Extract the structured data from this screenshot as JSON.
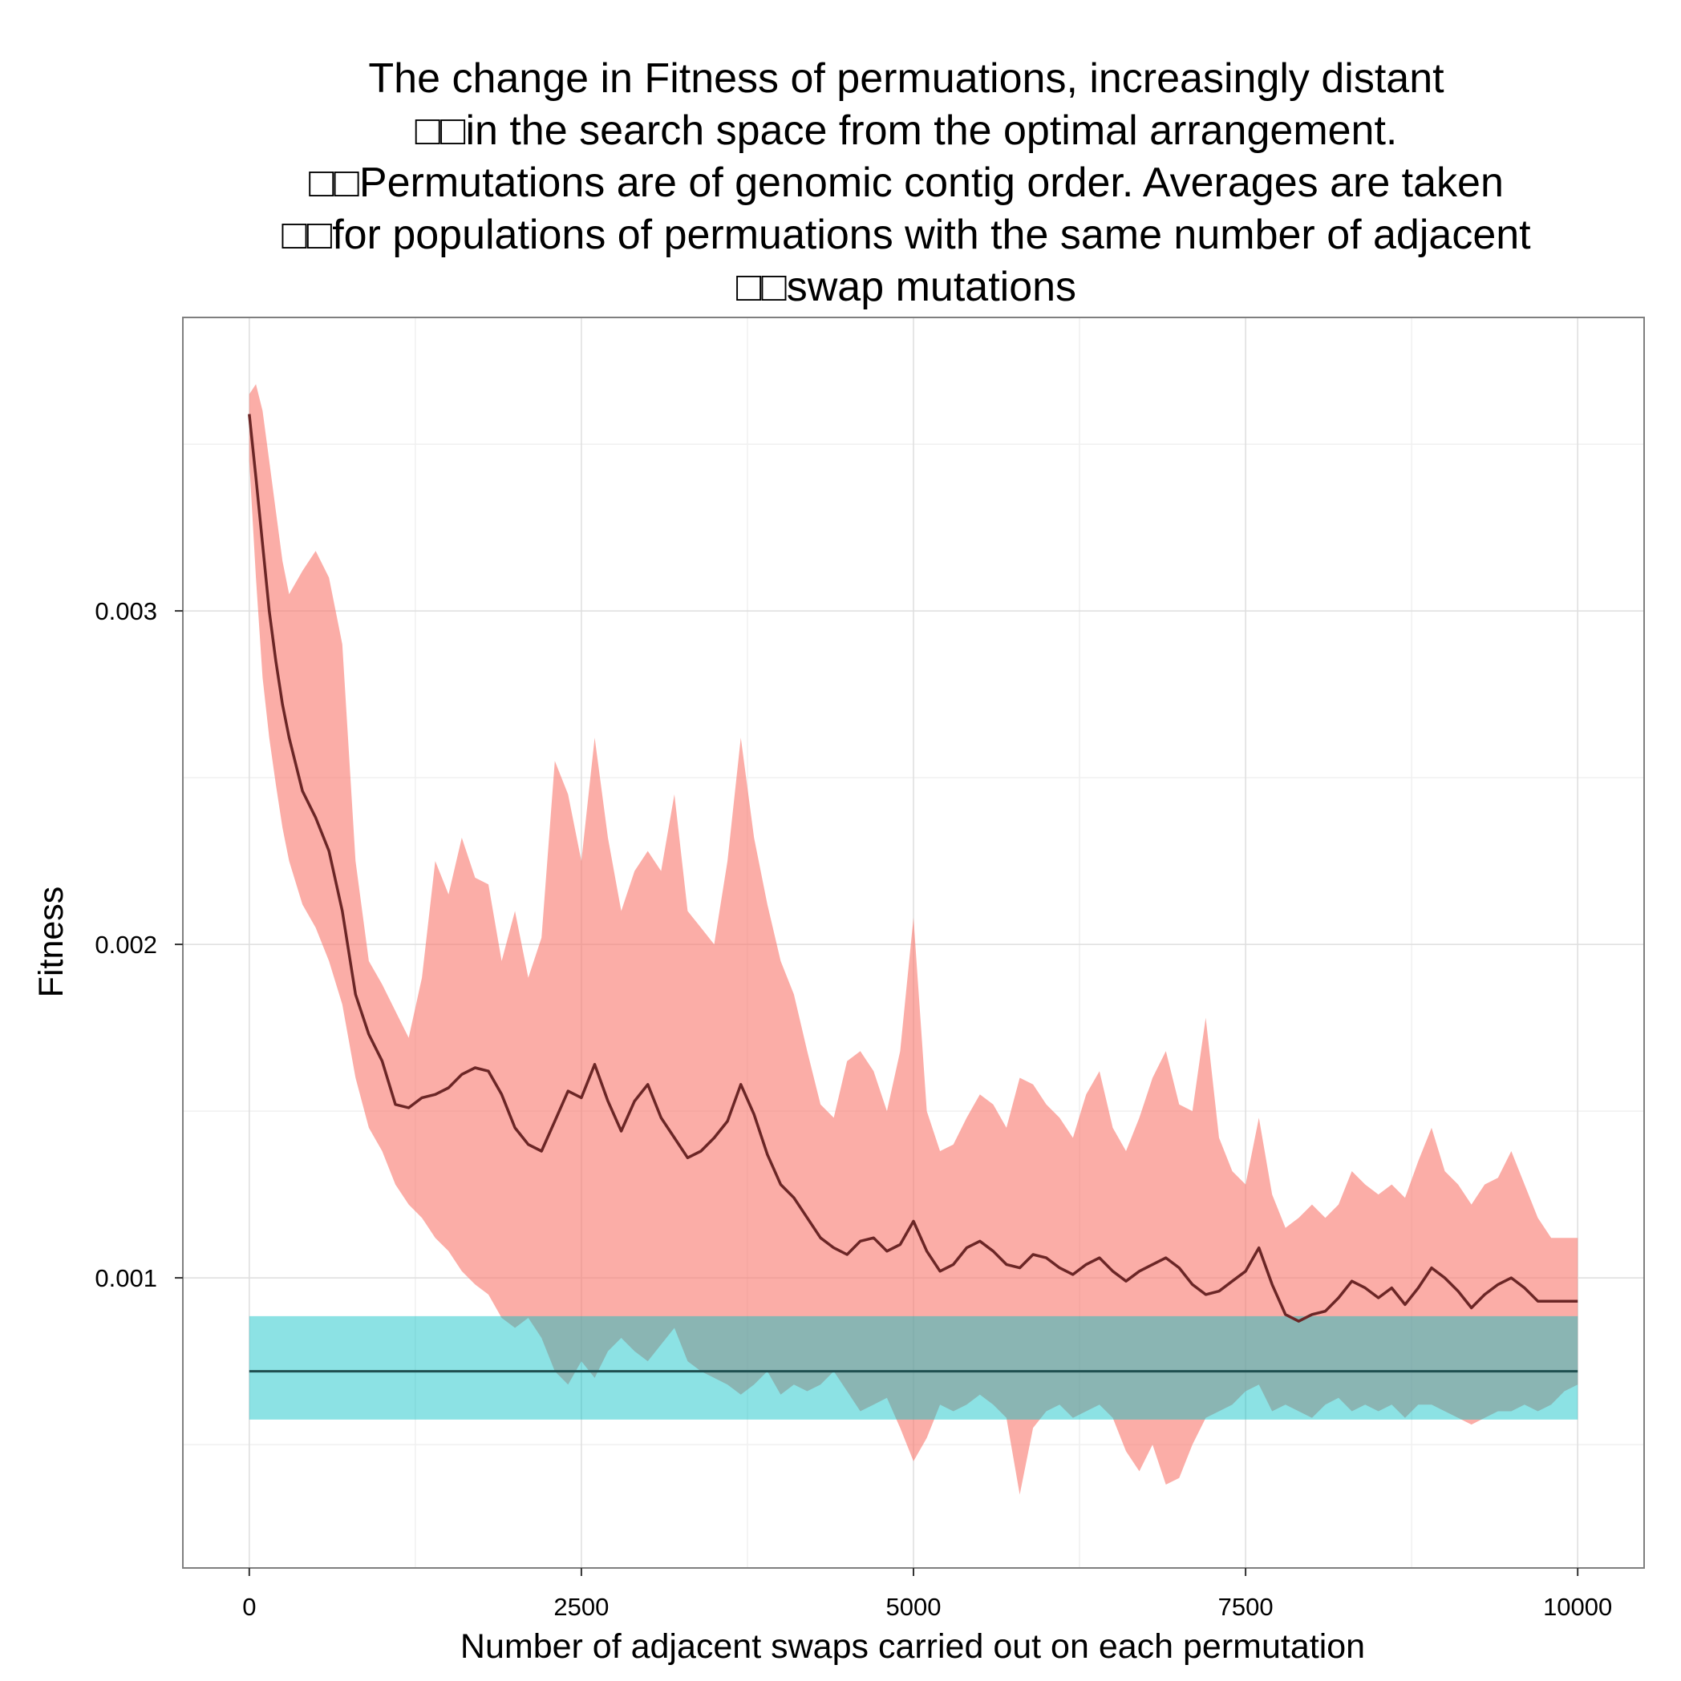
{
  "chart_data": {
    "type": "area",
    "title_lines": [
      "The change in Fitness of permuations, increasingly distant",
      "□□in the search space from the optimal arrangement.",
      "□□Permutations are of genomic contig order. Averages are taken",
      "□□for populations of permuations with the same number of adjacent",
      "□□swap mutations"
    ],
    "xlabel": "Number of adjacent swaps carried out on each permutation",
    "ylabel": "Fitness",
    "xlim": [
      -500,
      10500
    ],
    "ylim": [
      0.00013,
      0.00388
    ],
    "x_ticks": [
      0,
      2500,
      5000,
      7500,
      10000
    ],
    "x_tick_labels": [
      "0",
      "2500",
      "5000",
      "7500",
      "10000"
    ],
    "y_ticks": [
      0.001,
      0.002,
      0.003
    ],
    "y_tick_labels": [
      "0.001",
      "0.002",
      "0.003"
    ],
    "grid": true,
    "colors": {
      "panel_border": "#7f7f7f",
      "grid_major": "#dedede",
      "grid_minor": "#f0f0f0",
      "ribbon_permuted": "#f8766d",
      "line_permuted": "#6b2626",
      "ribbon_optimal": "#00bfc4",
      "line_optimal": "#1f4f50"
    },
    "series": [
      {
        "x": [
          0,
          50,
          100,
          150,
          200,
          250,
          300,
          400,
          500,
          600,
          700,
          800,
          900,
          1000,
          1100,
          1200,
          1300,
          1400,
          1500,
          1600,
          1700,
          1800,
          1900,
          2000,
          2100,
          2200,
          2300,
          2400,
          2500,
          2600,
          2700,
          2800,
          2900,
          3000,
          3100,
          3200,
          3300,
          3400,
          3500,
          3600,
          3700,
          3800,
          3900,
          4000,
          4100,
          4200,
          4300,
          4400,
          4500,
          4600,
          4700,
          4800,
          4900,
          5000,
          5100,
          5200,
          5300,
          5400,
          5500,
          5600,
          5700,
          5800,
          5900,
          6000,
          6100,
          6200,
          6300,
          6400,
          6500,
          6600,
          6700,
          6800,
          6900,
          7000,
          7100,
          7200,
          7300,
          7400,
          7500,
          7600,
          7700,
          7800,
          7900,
          8000,
          8100,
          8200,
          8300,
          8400,
          8500,
          8600,
          8700,
          8800,
          8900,
          9000,
          9100,
          9200,
          9300,
          9400,
          9500,
          9600,
          9700,
          9800,
          9900,
          10000
        ],
        "mean": [
          0.00359,
          0.0034,
          0.0032,
          0.003,
          0.00285,
          0.00272,
          0.00262,
          0.00246,
          0.00238,
          0.00228,
          0.0021,
          0.00185,
          0.00173,
          0.00165,
          0.00152,
          0.00151,
          0.00154,
          0.00155,
          0.00157,
          0.00161,
          0.00163,
          0.00162,
          0.00155,
          0.00145,
          0.0014,
          0.00138,
          0.00147,
          0.00156,
          0.00154,
          0.00164,
          0.00153,
          0.00144,
          0.00153,
          0.00158,
          0.00148,
          0.00142,
          0.00136,
          0.00138,
          0.00142,
          0.00147,
          0.00158,
          0.00149,
          0.00137,
          0.00128,
          0.00124,
          0.00118,
          0.00112,
          0.00109,
          0.00107,
          0.00111,
          0.00112,
          0.00108,
          0.0011,
          0.00117,
          0.00108,
          0.00102,
          0.00104,
          0.00109,
          0.00111,
          0.00108,
          0.00104,
          0.00103,
          0.00107,
          0.00106,
          0.00103,
          0.00101,
          0.00104,
          0.00106,
          0.00102,
          0.00099,
          0.00102,
          0.00104,
          0.00106,
          0.00103,
          0.00098,
          0.00095,
          0.00096,
          0.00099,
          0.00102,
          0.00109,
          0.00098,
          0.00089,
          0.00087,
          0.00089,
          0.0009,
          0.00094,
          0.00099,
          0.00097,
          0.00094,
          0.00097,
          0.00092,
          0.00097,
          0.00103,
          0.001,
          0.00096,
          0.00091,
          0.00095,
          0.00098,
          0.001,
          0.00097,
          0.00093,
          0.00093,
          0.00093,
          0.00093
        ],
        "upper": [
          0.00365,
          0.00368,
          0.0036,
          0.00345,
          0.0033,
          0.00315,
          0.00305,
          0.00312,
          0.00318,
          0.0031,
          0.0029,
          0.00225,
          0.00195,
          0.00188,
          0.0018,
          0.00172,
          0.0019,
          0.00225,
          0.00215,
          0.00232,
          0.0022,
          0.00218,
          0.00195,
          0.0021,
          0.0019,
          0.00202,
          0.00255,
          0.00245,
          0.00225,
          0.00262,
          0.00232,
          0.0021,
          0.00222,
          0.00228,
          0.00222,
          0.00245,
          0.0021,
          0.00205,
          0.002,
          0.00225,
          0.00262,
          0.00232,
          0.00212,
          0.00195,
          0.00185,
          0.00168,
          0.00152,
          0.00148,
          0.00165,
          0.00168,
          0.00162,
          0.0015,
          0.00168,
          0.00208,
          0.0015,
          0.00138,
          0.0014,
          0.00148,
          0.00155,
          0.00152,
          0.00145,
          0.0016,
          0.00158,
          0.00152,
          0.00148,
          0.00142,
          0.00155,
          0.00162,
          0.00145,
          0.00138,
          0.00148,
          0.0016,
          0.00168,
          0.00152,
          0.0015,
          0.00178,
          0.00142,
          0.00132,
          0.00128,
          0.00148,
          0.00125,
          0.00115,
          0.00118,
          0.00122,
          0.00118,
          0.00122,
          0.00132,
          0.00128,
          0.00125,
          0.00128,
          0.00124,
          0.00135,
          0.00145,
          0.00132,
          0.00128,
          0.00122,
          0.00128,
          0.0013,
          0.00138,
          0.00128,
          0.00118,
          0.00112,
          0.00112,
          0.00112
        ],
        "lower": [
          0.00345,
          0.0031,
          0.0028,
          0.00262,
          0.00248,
          0.00235,
          0.00225,
          0.00212,
          0.00205,
          0.00195,
          0.00182,
          0.0016,
          0.00145,
          0.00138,
          0.00128,
          0.00122,
          0.00118,
          0.00112,
          0.00108,
          0.00102,
          0.00098,
          0.00095,
          0.00088,
          0.00085,
          0.00088,
          0.00082,
          0.00072,
          0.00068,
          0.00075,
          0.0007,
          0.00078,
          0.00082,
          0.00078,
          0.00075,
          0.0008,
          0.00085,
          0.00075,
          0.00072,
          0.0007,
          0.00068,
          0.00065,
          0.00068,
          0.00072,
          0.00065,
          0.00068,
          0.00066,
          0.00068,
          0.00072,
          0.00066,
          0.0006,
          0.00062,
          0.00064,
          0.00055,
          0.00045,
          0.00052,
          0.00062,
          0.0006,
          0.00062,
          0.00065,
          0.00062,
          0.00058,
          0.00035,
          0.00055,
          0.0006,
          0.00062,
          0.00058,
          0.0006,
          0.00062,
          0.00058,
          0.00048,
          0.00042,
          0.0005,
          0.00038,
          0.0004,
          0.0005,
          0.00058,
          0.0006,
          0.00062,
          0.00066,
          0.00068,
          0.0006,
          0.00062,
          0.0006,
          0.00058,
          0.00062,
          0.00064,
          0.0006,
          0.00062,
          0.0006,
          0.00062,
          0.00058,
          0.00062,
          0.00062,
          0.0006,
          0.00058,
          0.00056,
          0.00058,
          0.0006,
          0.0006,
          0.00062,
          0.0006,
          0.00062,
          0.00066,
          0.00068
        ]
      },
      {
        "x": [
          0,
          10000
        ],
        "mean": [
          0.00072,
          0.00072
        ],
        "upper": [
          0.000885,
          0.000885
        ],
        "lower": [
          0.000575,
          0.000575
        ]
      }
    ]
  }
}
